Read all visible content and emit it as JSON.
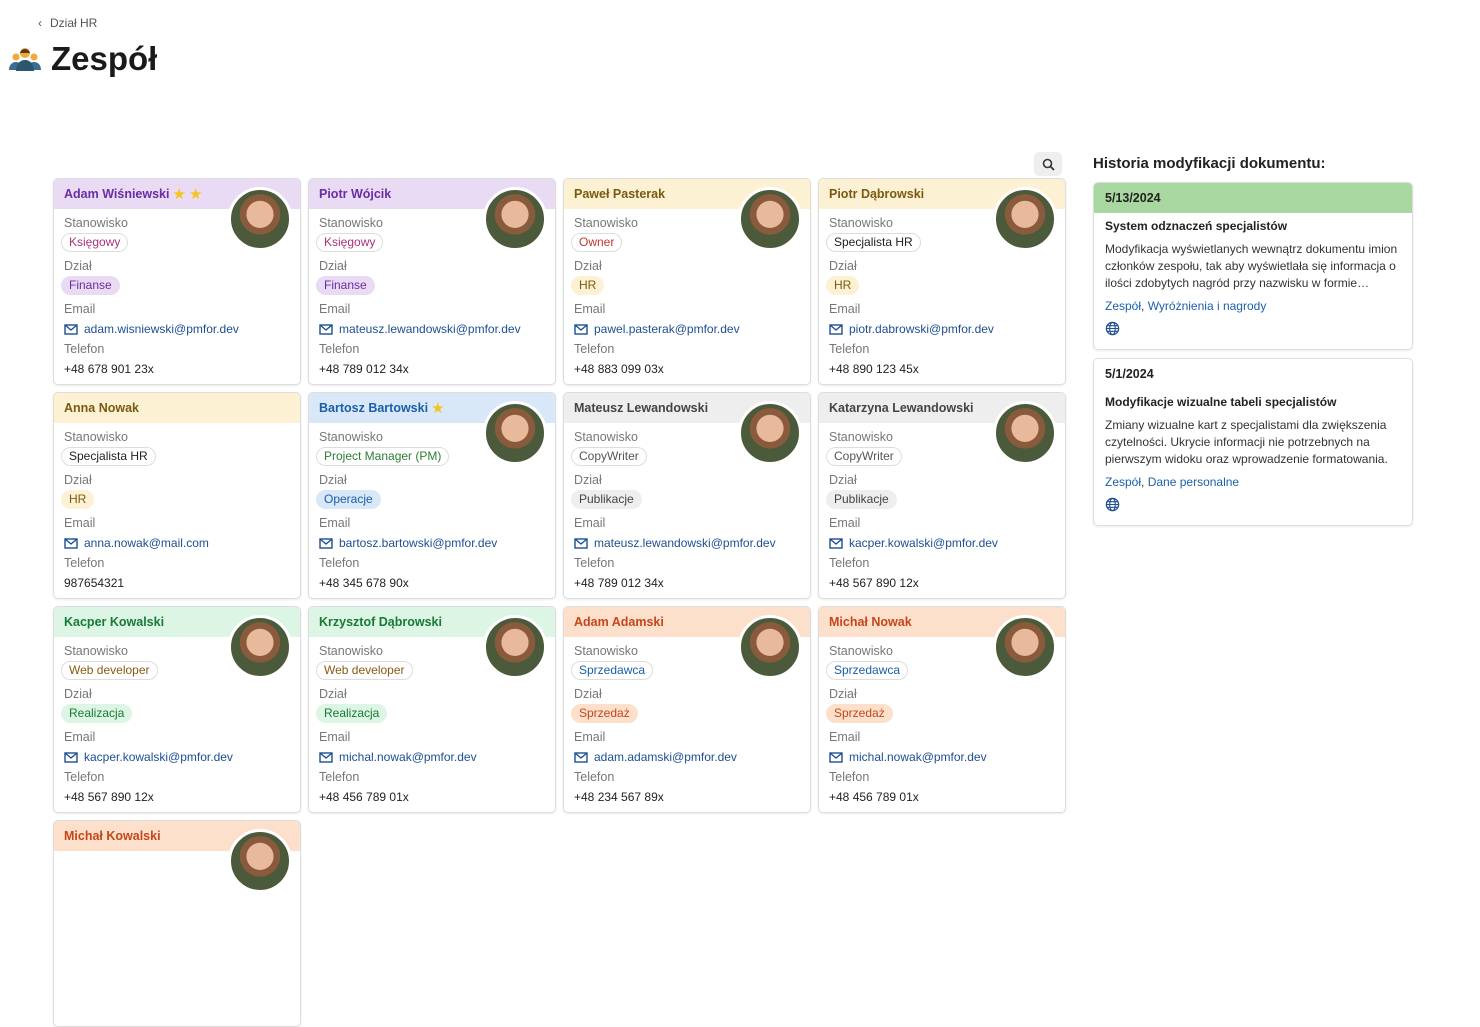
{
  "breadcrumb": {
    "label": "Dział HR"
  },
  "page": {
    "title": "Zespół",
    "icon": "team-icon"
  },
  "labels": {
    "position": "Stanowisko",
    "department": "Dział",
    "email": "Email",
    "phone": "Telefon"
  },
  "colors": {
    "purple": {
      "bg": "#e9dbf4",
      "fg": "#6a2da3"
    },
    "yellow": {
      "bg": "#fdf1d4",
      "fg": "#7a5a12"
    },
    "blue": {
      "bg": "#d8e8f8",
      "fg": "#1c5ea8"
    },
    "gray": {
      "bg": "#eeeeee",
      "fg": "#444444"
    },
    "green": {
      "bg": "#dcf5e4",
      "fg": "#177a35"
    },
    "orange": {
      "bg": "#fde0cc",
      "fg": "#c4461a"
    }
  },
  "members": [
    {
      "name": "Adam Wiśniewski",
      "stars": 2,
      "theme": "purple",
      "position": "Księgowy",
      "positionColor": "#a8327e",
      "department": "Finanse",
      "deptTheme": "purple",
      "email": "adam.wisniewski@pmfor.dev",
      "phone": "+48 678 901 23x"
    },
    {
      "name": "Piotr Wójcik",
      "stars": 0,
      "theme": "purple",
      "position": "Księgowy",
      "positionColor": "#a8327e",
      "department": "Finanse",
      "deptTheme": "purple",
      "email": "mateusz.lewandowski@pmfor.dev",
      "phone": "+48 789 012 34x"
    },
    {
      "name": "Paweł Pasterak",
      "stars": 0,
      "theme": "yellow",
      "position": "Owner",
      "positionColor": "#c0392b",
      "department": "HR",
      "deptTheme": "yellow",
      "email": "pawel.pasterak@pmfor.dev",
      "phone": "+48 883 099 03x"
    },
    {
      "name": "Piotr Dąbrowski",
      "stars": 0,
      "theme": "yellow",
      "position": "Specjalista HR",
      "positionColor": "#222222",
      "department": "HR",
      "deptTheme": "yellow",
      "email": "piotr.dabrowski@pmfor.dev",
      "phone": "+48 890 123 45x"
    },
    {
      "name": "Anna Nowak",
      "stars": 0,
      "theme": "yellow",
      "position": "Specjalista HR",
      "positionColor": "#222222",
      "department": "HR",
      "deptTheme": "yellow",
      "email": "anna.nowak@mail.com",
      "phone": "987654321",
      "noAvatar": true
    },
    {
      "name": "Bartosz Bartowski",
      "stars": 1,
      "theme": "blue",
      "position": "Project Manager (PM)",
      "positionColor": "#2e7d32",
      "department": "Operacje",
      "deptTheme": "blue",
      "email": "bartosz.bartowski@pmfor.dev",
      "phone": "+48 345 678 90x"
    },
    {
      "name": "Mateusz Lewandowski",
      "stars": 0,
      "theme": "gray",
      "position": "CopyWriter",
      "positionColor": "#555555",
      "department": "Publikacje",
      "deptTheme": "gray",
      "email": "mateusz.lewandowski@pmfor.dev",
      "phone": "+48 789 012 34x"
    },
    {
      "name": "Katarzyna Lewandowski",
      "stars": 0,
      "theme": "gray",
      "position": "CopyWriter",
      "positionColor": "#555555",
      "department": "Publikacje",
      "deptTheme": "gray",
      "email": "kacper.kowalski@pmfor.dev",
      "phone": "+48 567 890 12x"
    },
    {
      "name": "Kacper Kowalski",
      "stars": 0,
      "theme": "green",
      "position": "Web developer",
      "positionColor": "#8a5a12",
      "department": "Realizacja",
      "deptTheme": "green",
      "email": "kacper.kowalski@pmfor.dev",
      "phone": "+48 567 890 12x"
    },
    {
      "name": "Krzysztof Dąbrowski",
      "stars": 0,
      "theme": "green",
      "position": "Web developer",
      "positionColor": "#8a5a12",
      "department": "Realizacja",
      "deptTheme": "green",
      "email": "michal.nowak@pmfor.dev",
      "phone": "+48 456 789 01x"
    },
    {
      "name": "Adam Adamski",
      "stars": 0,
      "theme": "orange",
      "position": "Sprzedawca",
      "positionColor": "#1c5ea8",
      "department": "Sprzedaż",
      "deptTheme": "orange",
      "email": "adam.adamski@pmfor.dev",
      "phone": "+48 234 567 89x"
    },
    {
      "name": "Michał Nowak",
      "stars": 0,
      "theme": "orange",
      "position": "Sprzedawca",
      "positionColor": "#1c5ea8",
      "department": "Sprzedaż",
      "deptTheme": "orange",
      "email": "michal.nowak@pmfor.dev",
      "phone": "+48 456 789 01x"
    },
    {
      "name": "Michał Kowalski",
      "stars": 0,
      "theme": "orange"
    }
  ],
  "history": {
    "title": "Historia modyfikacji dokumentu:",
    "items": [
      {
        "date": "5/13/2024",
        "highlight": "#a8d8a0",
        "title": "System odznaczeń specjalistów",
        "description": "Modyfikacja wyświetlanych wewnątrz dokumentu imion członków zespołu, tak aby wyświetlała się informacja o ilości zdobytych nagród przy nazwisku w formie gwiazdek.",
        "links": [
          "Zespół",
          "Wyróżnienia i nagrody"
        ]
      },
      {
        "date": "5/1/2024",
        "highlight": "#ffffff",
        "title": "Modyfikacje wizualne tabeli specjalistów",
        "description": "Zmiany wizualne kart z specjalistami dla zwiększenia czytelności. Ukrycie informacji nie potrzebnych na pierwszym widoku oraz wprowadzenie formatowania.",
        "links": [
          "Zespół",
          "Dane personalne"
        ]
      }
    ]
  }
}
